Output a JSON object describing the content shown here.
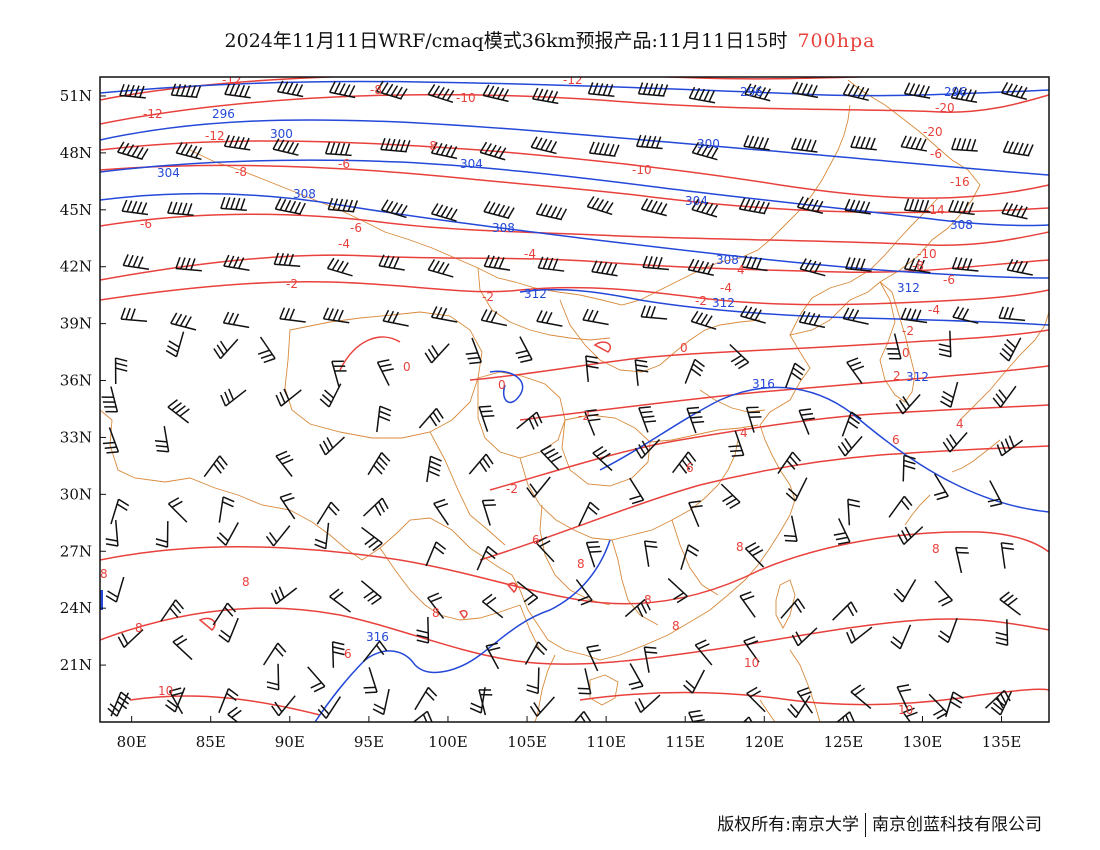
{
  "header": {
    "title": "2024年11月11日WRF/cmaq模式36km预报产品:11月11日15时",
    "level": "700hpa"
  },
  "map": {
    "lon_range": [
      78,
      138
    ],
    "lat_range": [
      18,
      52
    ],
    "x_ticks": [
      "80E",
      "85E",
      "90E",
      "95E",
      "100E",
      "105E",
      "110E",
      "115E",
      "120E",
      "125E",
      "130E",
      "135E"
    ],
    "y_ticks": [
      "51N",
      "48N",
      "45N",
      "42N",
      "39N",
      "36N",
      "33N",
      "30N",
      "27N",
      "24N",
      "21N"
    ],
    "colors": {
      "temperature": "#e8413c",
      "geopotential": "#2448d8",
      "boundary": "#d88a3c",
      "wind": "#000000"
    },
    "temperature_labels": [
      "-12",
      "-12",
      "-12",
      "-10",
      "-12",
      "-8",
      "-8",
      "-6",
      "-8",
      "-6",
      "-10",
      "-20",
      "-20",
      "-16",
      "-14",
      "-6",
      "-4",
      "-4",
      "-6",
      "-4",
      "-10",
      "-8",
      "-6",
      "-2",
      "-2",
      "-2",
      "-4",
      "-2",
      "-2",
      "0",
      "0",
      "0",
      "0",
      "2",
      "-2",
      "2",
      "4",
      "4",
      "6",
      "6",
      "4",
      "6",
      "8",
      "8",
      "8",
      "8",
      "8",
      "8",
      "8",
      "8",
      "8",
      "10",
      "10",
      "10",
      "6"
    ],
    "geopotential_labels": [
      "296",
      "296",
      "296",
      "300",
      "300",
      "304",
      "304",
      "304",
      "308",
      "308",
      "308",
      "308",
      "312",
      "312",
      "312",
      "312",
      "316",
      "316"
    ]
  },
  "footer": {
    "copyright": "版权所有:南京大学",
    "company": "南京创蓝科技有限公司"
  }
}
